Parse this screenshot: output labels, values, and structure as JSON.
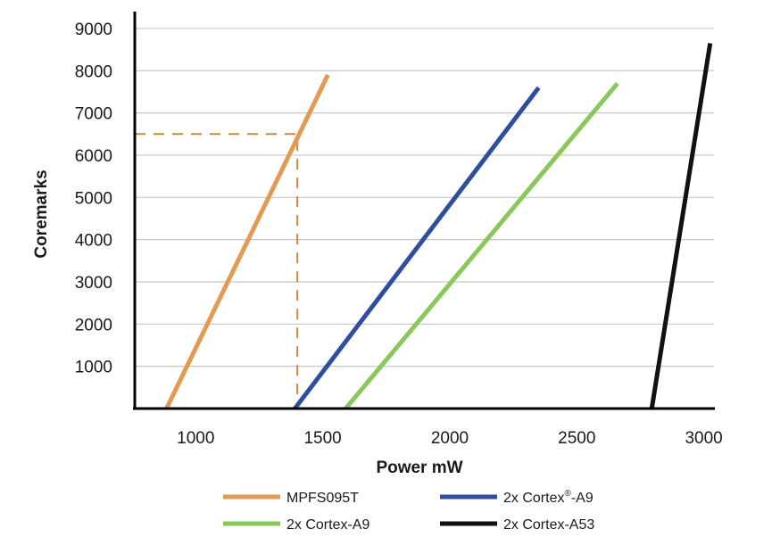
{
  "chart_data": {
    "type": "line",
    "title": "",
    "xlabel": "Power mW",
    "ylabel": "Coremarks",
    "xlim": [
      760,
      3040
    ],
    "ylim": [
      0,
      9400
    ],
    "x_ticks": [
      1000,
      1500,
      2000,
      2500,
      3000
    ],
    "y_ticks": [
      1000,
      2000,
      3000,
      4000,
      5000,
      6000,
      7000,
      8000,
      9000
    ],
    "grid": "horizontal",
    "legend_position": "bottom",
    "series": [
      {
        "name": "MPFS095T",
        "color": "#e39a52",
        "style": "solid",
        "points": [
          [
            885,
            0
          ],
          [
            1520,
            7900
          ]
        ]
      },
      {
        "name": "2x Cortex®-A9",
        "color": "#2e4e9e",
        "style": "solid",
        "points": [
          [
            1390,
            0
          ],
          [
            2350,
            7600
          ]
        ]
      },
      {
        "name": "2x Cortex-A9",
        "color": "#8ac85a",
        "style": "solid",
        "points": [
          [
            1590,
            0
          ],
          [
            2660,
            7700
          ]
        ]
      },
      {
        "name": "2x Cortex-A53",
        "color": "#111111",
        "style": "solid",
        "points": [
          [
            2795,
            0
          ],
          [
            3025,
            8650
          ]
        ]
      }
    ],
    "annotations": [
      {
        "type": "reference-line",
        "color": "#c98a3c",
        "style": "dashed",
        "points": [
          [
            760,
            6500
          ],
          [
            1400,
            6500
          ],
          [
            1400,
            0
          ]
        ]
      }
    ],
    "legend": [
      {
        "label": "MPFS095T",
        "label_text": "MPFS095T",
        "color": "#e39a52"
      },
      {
        "label": "2x Cortex®-A9",
        "label_text": "2x Cortex",
        "label_sup": "®",
        "label_suffix": "-A9",
        "color": "#2e4e9e"
      },
      {
        "label": "2x Cortex-A9",
        "label_text": "2x Cortex-A9",
        "color": "#8ac85a"
      },
      {
        "label": "2x Cortex-A53",
        "label_text": "2x Cortex-A53",
        "color": "#111111"
      }
    ]
  }
}
